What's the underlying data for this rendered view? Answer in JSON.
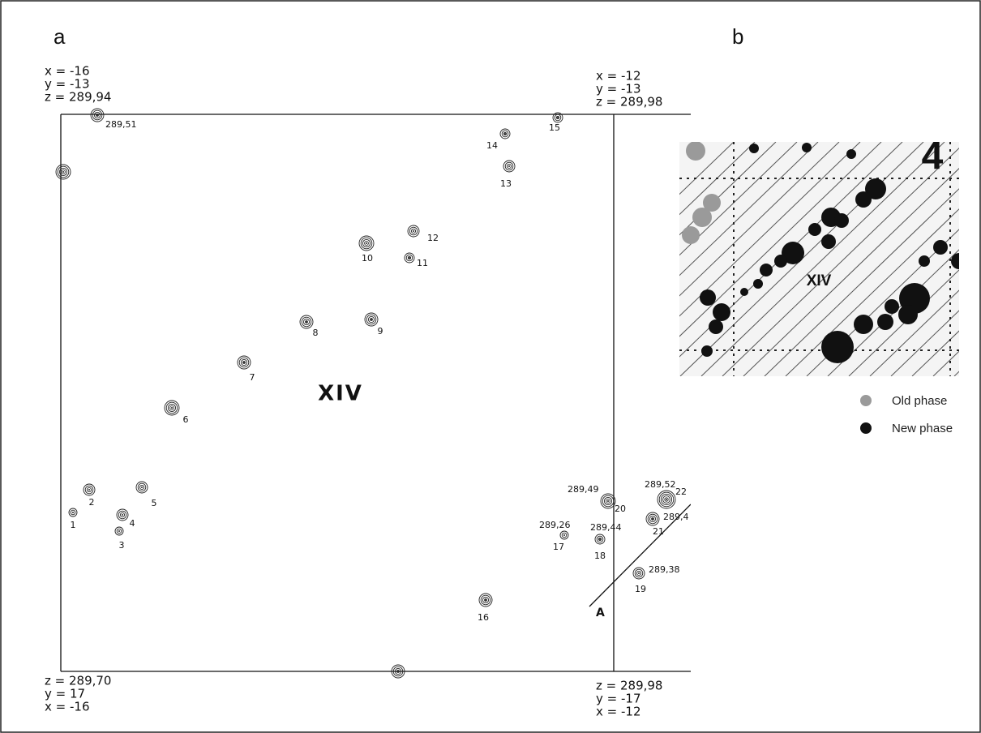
{
  "panels": {
    "a": "a",
    "b": "b"
  },
  "plan": {
    "square_label": "XIV",
    "corners": {
      "top_left": [
        "x = -16",
        "y = -13",
        "z = 289,94"
      ],
      "top_right": [
        "x = -12",
        "y = -13",
        "z = 289,98"
      ],
      "bottom_left": [
        "z = 289,70",
        "y = 17",
        "x = -16"
      ],
      "bottom_right": [
        "z = 289,98",
        "y = -17",
        "x = -12"
      ]
    },
    "posts": [
      "1",
      "2",
      "3",
      "4",
      "5",
      "6",
      "7",
      "8",
      "9",
      "10",
      "11",
      "12",
      "13",
      "14",
      "15",
      "16",
      "17",
      "18",
      "19",
      "20",
      "21",
      "22"
    ],
    "elevations": [
      "289,51",
      "289,49",
      "289,52",
      "289,4",
      "289,26",
      "289,44",
      "289,38"
    ],
    "section_label": "A"
  },
  "inset": {
    "square_label": "XIV",
    "sector_label": "4"
  },
  "legend": [
    "Old phase",
    "New phase"
  ]
}
